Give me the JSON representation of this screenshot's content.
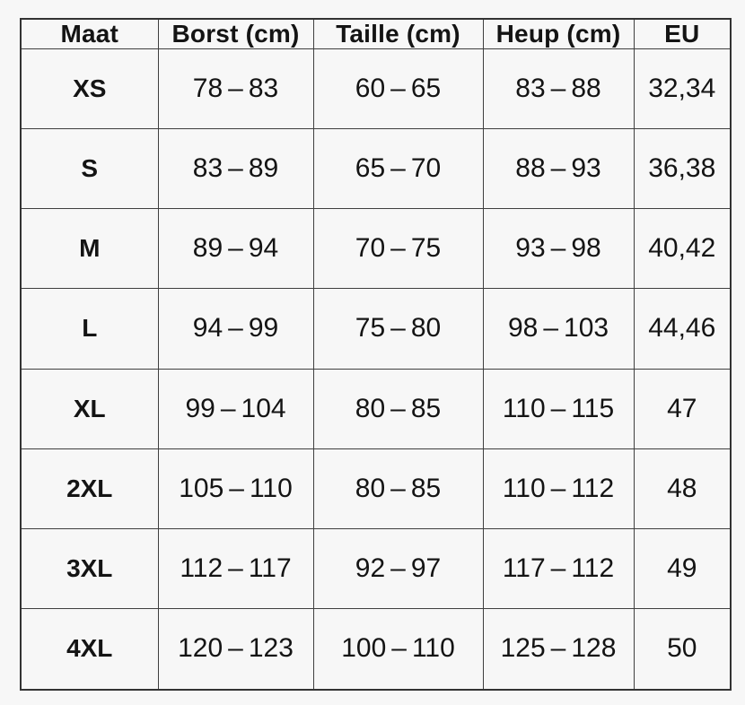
{
  "page": {
    "background": "#f7f7f7",
    "grid_color": "#3f3f3f",
    "outer_border_color": "#333333",
    "text_color": "#141414"
  },
  "chart_data": {
    "type": "table",
    "title": "",
    "columns": [
      "Maat",
      "Borst (cm)",
      "Taille (cm)",
      "Heup (cm)",
      "EU"
    ],
    "rows": [
      [
        "XS",
        "78 – 83",
        "60 – 65",
        "83 – 88",
        "32,34"
      ],
      [
        "S",
        "83 – 89",
        "65 – 70",
        "88 – 93",
        "36,38"
      ],
      [
        "M",
        "89 – 94",
        "70 – 75",
        "93 – 98",
        "40,42"
      ],
      [
        "L",
        "94 – 99",
        "75 – 80",
        "98 – 103",
        "44,46"
      ],
      [
        "XL",
        "99 – 104",
        "80 – 85",
        "110 – 115",
        "47"
      ],
      [
        "2XL",
        "105 – 110",
        "80 – 85",
        "110 – 112",
        "48"
      ],
      [
        "3XL",
        "112 – 117",
        "92 – 97",
        "117 – 112",
        "49"
      ],
      [
        "4XL",
        "120 – 123",
        "100 – 110",
        "125 – 128",
        "50"
      ]
    ],
    "layout": {
      "legend": "none",
      "grid": "on"
    }
  }
}
